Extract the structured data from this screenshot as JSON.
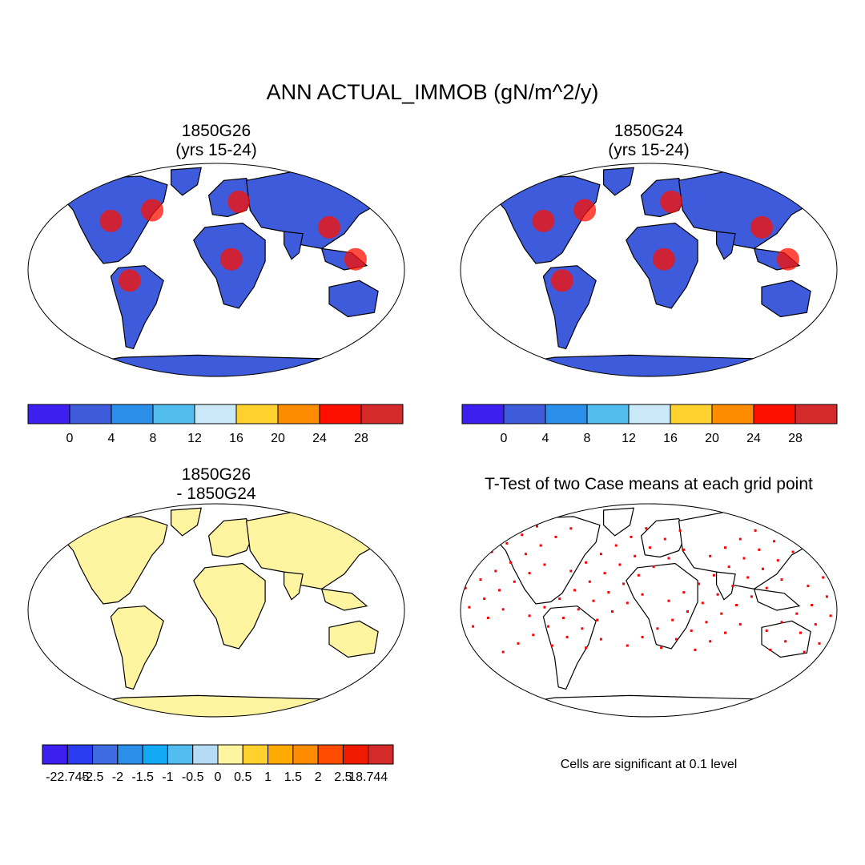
{
  "title": "ANN ACTUAL_IMMOB (gN/m^2/y)",
  "panels": [
    {
      "title_line1": "1850G26",
      "title_line2": "(yrs 15-24)"
    },
    {
      "title_line1": "1850G24",
      "title_line2": "(yrs 15-24)"
    },
    {
      "title_line1": "1850G26",
      "title_line2": "- 1850G24"
    },
    {
      "title_line1": "T-Test of two Case means at each grid point",
      "title_line2": ""
    }
  ],
  "colorbar_top": {
    "colors": [
      "#3d1ff0",
      "#3e5bdc",
      "#2b8ee8",
      "#52bcef",
      "#c9e8f8",
      "#ffd12e",
      "#ff8b00",
      "#ff0f00",
      "#d42a2a"
    ],
    "labels": [
      "0",
      "4",
      "8",
      "12",
      "16",
      "20",
      "24",
      "28"
    ]
  },
  "colorbar_diff": {
    "colors": [
      "#3d1ff0",
      "#2a3cf0",
      "#3e6be0",
      "#2b8ee8",
      "#12aaf5",
      "#52bcef",
      "#b6dcf5",
      "#fff4a0",
      "#ffd12e",
      "#ffaa00",
      "#ff8b00",
      "#ff4b00",
      "#f01a00",
      "#d42a2a"
    ],
    "labels": [
      "-22.745",
      "-2.5",
      "-2",
      "-1.5",
      "-1",
      "-0.5",
      "0",
      "0.5",
      "1",
      "1.5",
      "2",
      "2.5",
      "18.744"
    ]
  },
  "ttest_note": "Cells are significant at 0.1 level",
  "colors": {
    "land_base": "#3e5bdc",
    "land_warm": "#ff0f00",
    "diff_base": "#fff4a0",
    "ttest_dot": "#ff0000",
    "outline": "#000000"
  }
}
